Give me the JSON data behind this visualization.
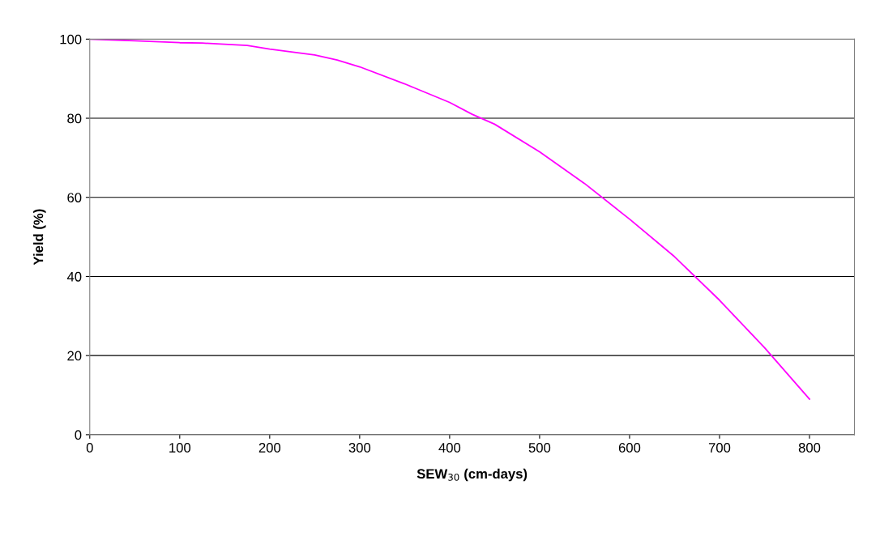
{
  "chart_data": {
    "type": "line",
    "xlabel": "SEW$_{30}$ (cm-days)",
    "ylabel": "Yield (%)",
    "series": [
      {
        "color": "#ff00ff",
        "x": [
          0,
          50,
          100,
          125,
          175,
          200,
          250,
          275,
          300,
          350,
          400,
          425,
          450,
          500,
          550,
          600,
          650,
          700,
          750,
          800
        ],
        "values": [
          100,
          99.6,
          99.1,
          99,
          98.4,
          97.5,
          96,
          94.7,
          93,
          88.7,
          84,
          81,
          78.5,
          71.5,
          63.5,
          54.5,
          45,
          34,
          22,
          9
        ]
      }
    ],
    "xlim": [
      0,
      850
    ],
    "xticks": [
      0,
      100,
      200,
      300,
      400,
      500,
      600,
      700,
      800
    ],
    "ylim": [
      0,
      100
    ],
    "yticks": [
      0,
      20,
      40,
      60,
      80,
      100
    ],
    "grid": "y",
    "marker": "none",
    "line_style": "solid",
    "legend": false
  }
}
